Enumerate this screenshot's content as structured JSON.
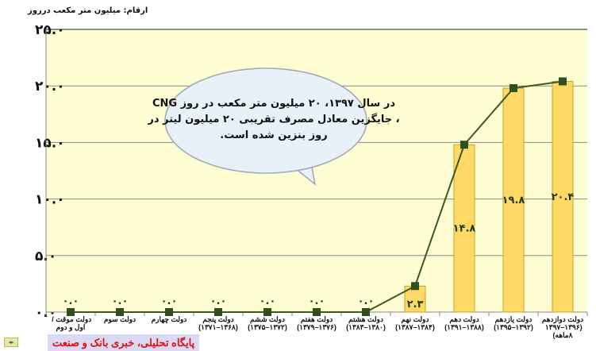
{
  "chart_data": {
    "type": "bar+line",
    "unit_label": "ارقام: میلیون متر مکعب درروز",
    "categories": [
      {
        "name": "دولت موقت / اول و دوم",
        "period": ""
      },
      {
        "name": "دولت سوم",
        "period": ""
      },
      {
        "name": "دولت چهارم",
        "period": ""
      },
      {
        "name": "دولت پنجم",
        "period": "(۱۳۶۸–۱۳۷۱)"
      },
      {
        "name": "دولت ششم",
        "period": "(۱۳۷۲–۱۳۷۵)"
      },
      {
        "name": "دولت هفتم",
        "period": "(۱۳۷۶–۱۳۷۹)"
      },
      {
        "name": "دولت هشتم",
        "period": "(۱۳۸۰–۱۳۸۳)"
      },
      {
        "name": "دولت نهم",
        "period": "(۱۳۸۴–۱۳۸۷)"
      },
      {
        "name": "دولت دهم",
        "period": "(۱۳۸۸–۱۳۹۱)"
      },
      {
        "name": "دولت یازدهم",
        "period": "(۱۳۹۲–۱۳۹۵)"
      },
      {
        "name": "دولت دوازدهم",
        "period": "(۱۳۹۶–۱۳۹۷ ۸ماهه)"
      }
    ],
    "values": [
      0,
      0,
      0,
      0,
      0,
      0,
      0,
      2.3,
      14.8,
      19.8,
      20.4
    ],
    "data_labels": [
      "۰.۰",
      "۰.۰",
      "۰.۰",
      "۰.۰",
      "۰.۰",
      "۰.۰",
      "۰.۰",
      "۲.۳",
      "۱۴.۸",
      "۱۹.۸",
      "۲۰.۴"
    ],
    "bars_shown_from_index": 7,
    "ylim": [
      0,
      25
    ],
    "yticks": [
      0,
      5,
      10,
      15,
      20,
      25
    ],
    "ytick_labels": [
      "۰.۰",
      "۵.۰",
      "۱۰.۰",
      "۱۵.۰",
      "۲۰.۰",
      "۲۵.۰"
    ],
    "grid": true,
    "callout": [
      "در سال ۱۳۹۷، ۲۰ میلیون متر مکعب  در روز CNG",
      "، جایگزین معادل مصرف تقریبی ۲۰ میلیون لیتر در",
      "روز بنزین شده است."
    ],
    "colors": {
      "plot_bg": "#fffdd2",
      "bar": "#ffd966",
      "bar_border": "#c9a227",
      "line": "#3b5a22",
      "marker": "#2f4f1f",
      "label": "#1f3b1f"
    }
  },
  "footer": {
    "watermark": "پایگاه تحلیلی، خبری بانک و صنعت",
    "icon": "expand-icon"
  }
}
